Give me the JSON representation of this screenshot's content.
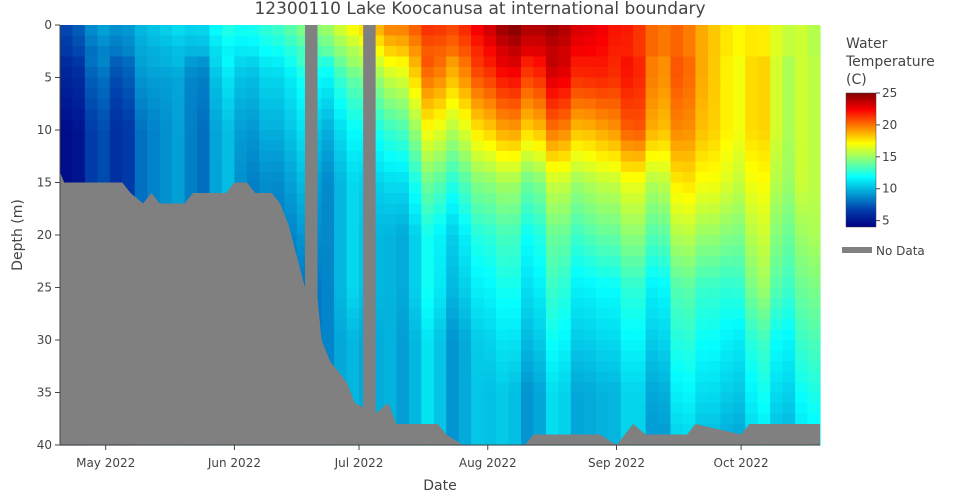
{
  "chart_data": {
    "type": "heatmap",
    "title": "12300110 Lake Koocanusa at international boundary",
    "xlabel": "Date",
    "ylabel": "Depth (m)",
    "x_range": [
      "2022-04-20",
      "2022-10-20"
    ],
    "y_range": [
      0,
      40
    ],
    "y_reversed": true,
    "x_ticks": [
      {
        "date": "2022-05-01",
        "label": "May 2022"
      },
      {
        "date": "2022-06-01",
        "label": "Jun 2022"
      },
      {
        "date": "2022-07-01",
        "label": "Jul 2022"
      },
      {
        "date": "2022-08-01",
        "label": "Aug 2022"
      },
      {
        "date": "2022-09-01",
        "label": "Sep 2022"
      },
      {
        "date": "2022-10-01",
        "label": "Oct 2022"
      }
    ],
    "y_ticks": [
      0,
      5,
      10,
      15,
      20,
      25,
      30,
      35,
      40
    ],
    "depths": [
      0,
      5,
      10,
      15,
      20,
      25,
      30,
      35,
      40
    ],
    "dates": [
      "2022-04-20",
      "2022-04-30",
      "2022-05-10",
      "2022-05-20",
      "2022-05-30",
      "2022-06-09",
      "2022-06-17",
      "2022-06-24",
      "2022-06-30",
      "2022-07-08",
      "2022-07-18",
      "2022-07-28",
      "2022-08-07",
      "2022-08-17",
      "2022-08-27",
      "2022-09-06",
      "2022-09-16",
      "2022-09-26",
      "2022-10-06",
      "2022-10-16",
      "2022-10-20"
    ],
    "temperature": [
      [
        7,
        6,
        5,
        5,
        5,
        5,
        5,
        5,
        5
      ],
      [
        9,
        7,
        6,
        6,
        6,
        6,
        6,
        6,
        6
      ],
      [
        10,
        9,
        8,
        8,
        8,
        8,
        8,
        8,
        8
      ],
      [
        11,
        9,
        9,
        9,
        9,
        9,
        9,
        9,
        9
      ],
      [
        12,
        10,
        9,
        9,
        9,
        9,
        9,
        9,
        9
      ],
      [
        13,
        11,
        10,
        9,
        9,
        9,
        9,
        9,
        9
      ],
      [
        14,
        11,
        10,
        9,
        8,
        7,
        7,
        7,
        7
      ],
      [
        16,
        13,
        11,
        10,
        10,
        10,
        10,
        10,
        10
      ],
      [
        17,
        13,
        11,
        10,
        10,
        10,
        9,
        9,
        9
      ],
      [
        20,
        16,
        13,
        11,
        10,
        10,
        10,
        10,
        10
      ],
      [
        21,
        19,
        16,
        13,
        11,
        11,
        10,
        10,
        10
      ],
      [
        22,
        20,
        17,
        14,
        12,
        11,
        10,
        10,
        10
      ],
      [
        25,
        22,
        19,
        15,
        13,
        12,
        11,
        10,
        10
      ],
      [
        24,
        22,
        19,
        15,
        13,
        12,
        11,
        10,
        10
      ],
      [
        23,
        22,
        19,
        16,
        14,
        12,
        11,
        10,
        10
      ],
      [
        21,
        21,
        20,
        16,
        14,
        12,
        11,
        10,
        10
      ],
      [
        20,
        20,
        19,
        17,
        15,
        13,
        12,
        11,
        10
      ],
      [
        18,
        18,
        18,
        17,
        15,
        13,
        12,
        11,
        10
      ],
      [
        17,
        17,
        17,
        16,
        15,
        14,
        12,
        11,
        10
      ],
      [
        16,
        16,
        16,
        16,
        15,
        14,
        13,
        12,
        11
      ],
      [
        15,
        15,
        15,
        15,
        15,
        14,
        13,
        12,
        11
      ]
    ],
    "bottom_depth": [
      [
        "2022-04-20",
        14
      ],
      [
        "2022-04-21",
        15
      ],
      [
        "2022-05-05",
        15
      ],
      [
        "2022-05-07",
        16
      ],
      [
        "2022-05-10",
        17
      ],
      [
        "2022-05-12",
        16
      ],
      [
        "2022-05-14",
        17
      ],
      [
        "2022-05-20",
        17
      ],
      [
        "2022-05-22",
        16
      ],
      [
        "2022-05-30",
        16
      ],
      [
        "2022-06-01",
        15
      ],
      [
        "2022-06-04",
        15
      ],
      [
        "2022-06-06",
        16
      ],
      [
        "2022-06-10",
        16
      ],
      [
        "2022-06-12",
        17
      ],
      [
        "2022-06-14",
        19
      ],
      [
        "2022-06-16",
        22
      ],
      [
        "2022-06-18",
        25
      ],
      [
        "2022-06-19",
        26
      ],
      [
        "2022-06-21",
        26
      ],
      [
        "2022-06-22",
        30
      ],
      [
        "2022-06-24",
        32
      ],
      [
        "2022-06-26",
        33
      ],
      [
        "2022-06-28",
        34
      ],
      [
        "2022-06-30",
        36
      ],
      [
        "2022-07-05",
        37
      ],
      [
        "2022-07-08",
        36
      ],
      [
        "2022-07-10",
        38
      ],
      [
        "2022-07-20",
        38
      ],
      [
        "2022-07-22",
        39
      ],
      [
        "2022-07-26",
        40
      ],
      [
        "2022-08-01",
        40
      ],
      [
        "2022-08-10",
        40
      ],
      [
        "2022-08-12",
        39
      ],
      [
        "2022-08-28",
        39
      ],
      [
        "2022-09-01",
        40
      ],
      [
        "2022-09-03",
        39
      ],
      [
        "2022-09-05",
        38
      ],
      [
        "2022-09-08",
        39
      ],
      [
        "2022-09-18",
        39
      ],
      [
        "2022-09-20",
        38
      ],
      [
        "2022-10-01",
        39
      ],
      [
        "2022-10-03",
        38
      ],
      [
        "2022-10-20",
        38
      ]
    ],
    "no_data_ranges": [
      [
        "2022-06-18",
        "2022-06-21"
      ],
      [
        "2022-07-02",
        "2022-07-05"
      ]
    ],
    "colorscale": "Jet",
    "color_range": [
      4,
      25
    ],
    "colorbar": {
      "title_lines": [
        "Water",
        "Temperature",
        "(C)"
      ],
      "ticks": [
        5,
        10,
        15,
        20,
        25
      ]
    },
    "legend": {
      "entry": "No Data",
      "color": "#808080",
      "placement": "right"
    },
    "no_data_color": "#808080",
    "grid": false
  }
}
